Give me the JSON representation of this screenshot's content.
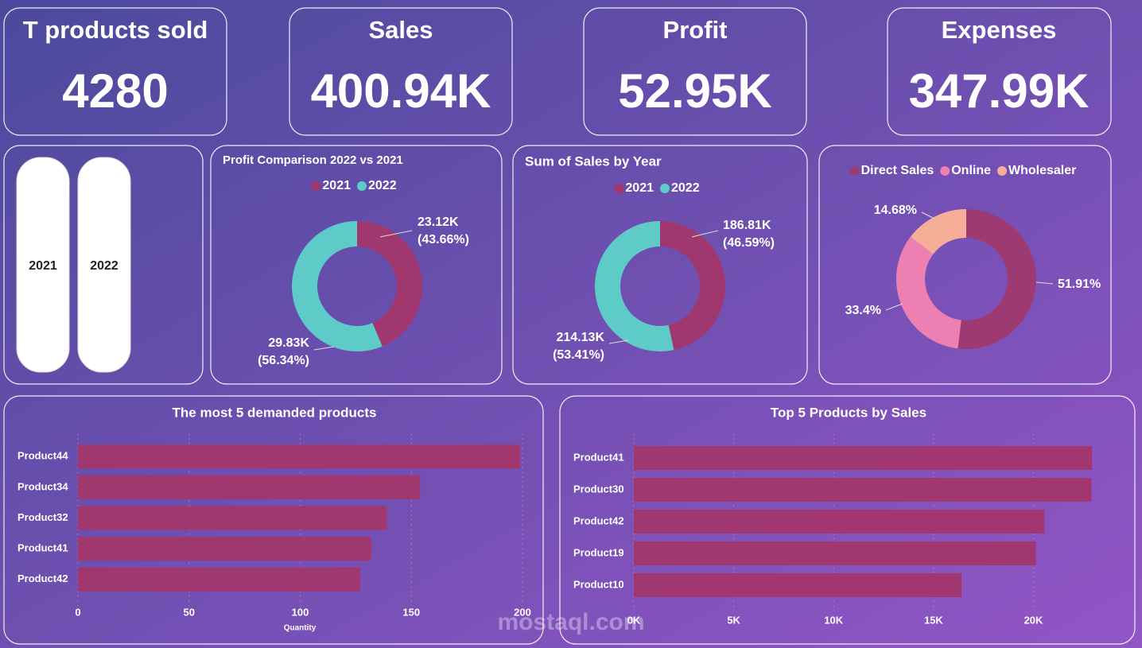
{
  "kpis": [
    {
      "label": "T products sold",
      "value": "4280"
    },
    {
      "label": "Sales",
      "value": "400.94K"
    },
    {
      "label": "Profit",
      "value": "52.95K"
    },
    {
      "label": "Expenses",
      "value": "347.99K"
    }
  ],
  "slicer": {
    "options": [
      "2021",
      "2022"
    ]
  },
  "watermark": "mostaql.com",
  "chart_data": [
    {
      "type": "donut",
      "title": "Profit Comparison 2022 vs 2021",
      "categories": [
        "2021",
        "2022"
      ],
      "colors": [
        "#a0386f",
        "#5ecbc8"
      ],
      "values": [
        23120,
        29830
      ],
      "value_labels": [
        "23.12K",
        "29.83K"
      ],
      "percent_labels": [
        "(43.66%)",
        "(56.34%)"
      ]
    },
    {
      "type": "donut",
      "title": "Sum of Sales by Year",
      "categories": [
        "2021",
        "2022"
      ],
      "colors": [
        "#a0386f",
        "#5ecbc8"
      ],
      "values": [
        186810,
        214130
      ],
      "value_labels": [
        "186.81K",
        "214.13K"
      ],
      "percent_labels": [
        "(46.59%)",
        "(53.41%)"
      ]
    },
    {
      "type": "donut",
      "categories": [
        "Direct Sales",
        "Online",
        "Wholesaler"
      ],
      "colors": [
        "#9e3a72",
        "#ee7fb2",
        "#f6ad98"
      ],
      "values": [
        51.91,
        33.4,
        14.68
      ],
      "value_labels": [
        "51.91%",
        "33.4%",
        "14.68%"
      ]
    },
    {
      "type": "bar",
      "orientation": "horizontal",
      "title": "The most 5 demanded products",
      "categories": [
        "Product44",
        "Product34",
        "Product32",
        "Product41",
        "Product42"
      ],
      "values": [
        199,
        154,
        139,
        132,
        127
      ],
      "color": "#a0386f",
      "xlim": [
        0,
        200
      ],
      "xticks": [
        0,
        50,
        100,
        150,
        200
      ],
      "x_label": "Quantity",
      "grid": true
    },
    {
      "type": "bar",
      "orientation": "horizontal",
      "title": "Top 5 Products by Sales",
      "categories": [
        "Product41",
        "Product30",
        "Product42",
        "Product19",
        "Product10"
      ],
      "values": [
        22930,
        22900,
        20550,
        20120,
        16400
      ],
      "color": "#a0386f",
      "xlim": [
        0,
        24000
      ],
      "xticks": [
        {
          "value": 0,
          "label": "0K"
        },
        {
          "value": 5000,
          "label": "5K"
        },
        {
          "value": 10000,
          "label": "10K"
        },
        {
          "value": 15000,
          "label": "15K"
        },
        {
          "value": 20000,
          "label": "20K"
        }
      ],
      "grid": true
    }
  ]
}
